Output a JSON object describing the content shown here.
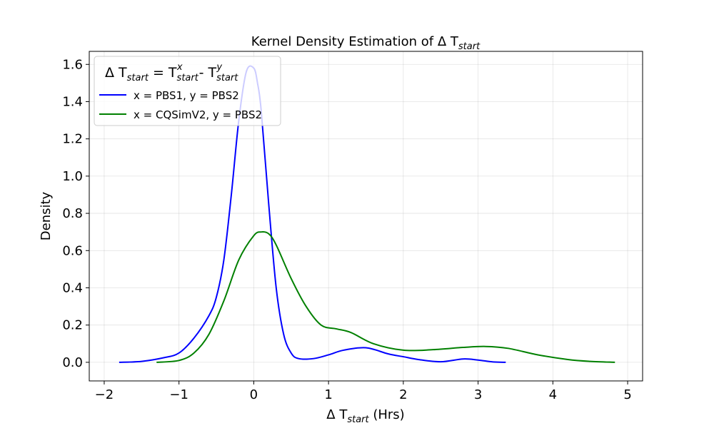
{
  "chart_data": {
    "type": "line",
    "title": {
      "base": "Kernel Density Estimation of Δ T",
      "sub": "start"
    },
    "xlabel": {
      "base": "Δ T",
      "sub": "start",
      "after": " (Hrs)"
    },
    "ylabel": "Density",
    "xlim": [
      -2.2,
      5.2
    ],
    "ylim": [
      -0.1,
      1.67
    ],
    "xticks": [
      -2,
      -1,
      0,
      1,
      2,
      3,
      4,
      5
    ],
    "xtick_labels": [
      "−2",
      "−1",
      "0",
      "1",
      "2",
      "3",
      "4",
      "5"
    ],
    "yticks": [
      0.0,
      0.2,
      0.4,
      0.6,
      0.8,
      1.0,
      1.2,
      1.4,
      1.6
    ],
    "ytick_labels": [
      "0.0",
      "0.2",
      "0.4",
      "0.6",
      "0.8",
      "1.0",
      "1.2",
      "1.4",
      "1.6"
    ],
    "grid": true,
    "legend": {
      "placement": "upper-left",
      "title": {
        "p1": "Δ T",
        "s1": "start",
        "p2": " = T",
        "s2": "start",
        "sup2": "x",
        "p3": " - T",
        "s3": "start",
        "sup3": "y"
      }
    },
    "series": [
      {
        "name": "x = PBS1, y = PBS2",
        "color": "#0000ff",
        "x": [
          -1.8,
          -1.5,
          -1.2,
          -1.0,
          -0.8,
          -0.6,
          -0.5,
          -0.4,
          -0.3,
          -0.2,
          -0.1,
          0.0,
          0.05,
          0.1,
          0.2,
          0.3,
          0.4,
          0.5,
          0.6,
          0.8,
          1.0,
          1.2,
          1.5,
          1.8,
          2.0,
          2.2,
          2.5,
          2.8,
          3.0,
          3.2,
          3.37
        ],
        "y": [
          0.0,
          0.005,
          0.025,
          0.05,
          0.13,
          0.25,
          0.35,
          0.55,
          0.9,
          1.3,
          1.56,
          1.58,
          1.5,
          1.35,
          0.85,
          0.4,
          0.15,
          0.05,
          0.02,
          0.02,
          0.04,
          0.065,
          0.078,
          0.045,
          0.03,
          0.015,
          0.003,
          0.018,
          0.012,
          0.002,
          0.0
        ]
      },
      {
        "name": "x = CQSimV2, y = PBS2",
        "color": "#008000",
        "x": [
          -1.3,
          -1.0,
          -0.8,
          -0.6,
          -0.4,
          -0.2,
          0.0,
          0.1,
          0.2,
          0.3,
          0.5,
          0.7,
          0.9,
          1.1,
          1.3,
          1.6,
          2.0,
          2.4,
          2.8,
          3.1,
          3.4,
          3.8,
          4.2,
          4.5,
          4.83
        ],
        "y": [
          0.0,
          0.01,
          0.05,
          0.15,
          0.33,
          0.55,
          0.68,
          0.7,
          0.69,
          0.63,
          0.45,
          0.3,
          0.2,
          0.18,
          0.16,
          0.1,
          0.065,
          0.068,
          0.08,
          0.085,
          0.075,
          0.04,
          0.015,
          0.005,
          0.0
        ]
      }
    ]
  }
}
